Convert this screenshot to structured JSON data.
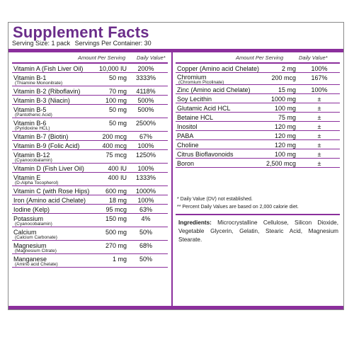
{
  "header": {
    "title": "Supplement Facts",
    "serving_size": "Serving Size: 1 pack",
    "servings_per_container": "Servings Per Container: 30"
  },
  "columns": {
    "amount_label": "Amount Per Serving",
    "dv_label": "Daily Value*"
  },
  "left_rows": [
    {
      "name": "Vitamin A (Fish Liver Oil)",
      "sub": "",
      "amount": "10,000 IU",
      "dv": "200%"
    },
    {
      "name": "Vitamin B-1",
      "sub": "(Thiamine Mononitrate)",
      "amount": "50 mg",
      "dv": "3333%"
    },
    {
      "name": "Vitamin B-2 (Riboflavin)",
      "sub": "",
      "amount": "70 mg",
      "dv": "4118%"
    },
    {
      "name": "Vitamin B-3 (Niacin)",
      "sub": "",
      "amount": "100 mg",
      "dv": "500%"
    },
    {
      "name": "Vitamin B-5",
      "sub": "(Pantothenic Acid)",
      "amount": "50 mg",
      "dv": "500%"
    },
    {
      "name": "Vitamin B-6",
      "sub": "(Pyridoxine HCL)",
      "amount": "50 mg",
      "dv": "2500%"
    },
    {
      "name": "Vitamin B-7 (Biotin)",
      "sub": "",
      "amount": "200 mcg",
      "dv": "67%"
    },
    {
      "name": "Vitamin B-9 (Folic Acid)",
      "sub": "",
      "amount": "400 mcg",
      "dv": "100%"
    },
    {
      "name": "Vitamin B-12",
      "sub": "(Cyanocobalamin)",
      "amount": "75 mcg",
      "dv": "1250%"
    },
    {
      "name": "Vitamin D (Fish Liver Oil)",
      "sub": "",
      "amount": "400 IU",
      "dv": "100%"
    },
    {
      "name": "Vitamin E",
      "sub": "(D-Alpha Tocopherol)",
      "amount": "400 IU",
      "dv": "1333%"
    },
    {
      "name": "Vitamin C (with Rose Hips)",
      "sub": "",
      "amount": "600 mg",
      "dv": "1000%"
    },
    {
      "name": "Iron (Amino acid Chelate)",
      "sub": "",
      "amount": "18 mg",
      "dv": "100%"
    },
    {
      "name": "Iodine (Kelp)",
      "sub": "",
      "amount": "95 mcg",
      "dv": "63%"
    },
    {
      "name": "Potassium",
      "sub": "(Cyanocobalamin)",
      "amount": "150 mg",
      "dv": "4%"
    },
    {
      "name": "Calcium",
      "sub": "(Calcium Carbonate)",
      "amount": "500 mg",
      "dv": "50%"
    },
    {
      "name": "Magnesium",
      "sub": "(Magnesium Citrate)",
      "amount": "270 mg",
      "dv": "68%"
    },
    {
      "name": "Manganese",
      "sub": "(Amino acid Chelate)",
      "amount": "1 mg",
      "dv": "50%"
    }
  ],
  "right_rows": [
    {
      "name": "Copper (Amino acid Chelate)",
      "sub": "",
      "amount": "2 mg",
      "dv": "100%"
    },
    {
      "name": "Chromium",
      "sub": "(Chromium Picolinate)",
      "amount": "200 mcg",
      "dv": "167%"
    },
    {
      "name": "Zinc (Amino acid Chelate)",
      "sub": "",
      "amount": "15 mg",
      "dv": "100%"
    },
    {
      "name": "Soy Lecithin",
      "sub": "",
      "amount": "1000 mg",
      "dv": "±"
    },
    {
      "name": "Glutamic Acid HCL",
      "sub": "",
      "amount": "100 mg",
      "dv": "±"
    },
    {
      "name": "Betaine HCL",
      "sub": "",
      "amount": "75 mg",
      "dv": "±"
    },
    {
      "name": "Inositol",
      "sub": "",
      "amount": "120 mg",
      "dv": "±"
    },
    {
      "name": "PABA",
      "sub": "",
      "amount": "120 mg",
      "dv": "±"
    },
    {
      "name": "Choline",
      "sub": "",
      "amount": "120 mg",
      "dv": "±"
    },
    {
      "name": "Citrus Bioflavonoids",
      "sub": "",
      "amount": "100 mg",
      "dv": "±"
    },
    {
      "name": "Boron",
      "sub": "",
      "amount": "2,500 mcg",
      "dv": "±"
    }
  ],
  "footnotes": {
    "note1": "*  Daily Value (DV) not established.",
    "note2": "** Percent Daily Values are based on 2,000 calorie diet."
  },
  "ingredients": {
    "label": "Ingredients:",
    "text": "Microcrystalline Cellulose, Silicon Dioxide, Vegetable Glycerin, Gelatin, Stearic Acid, Magnesium Stearate."
  }
}
